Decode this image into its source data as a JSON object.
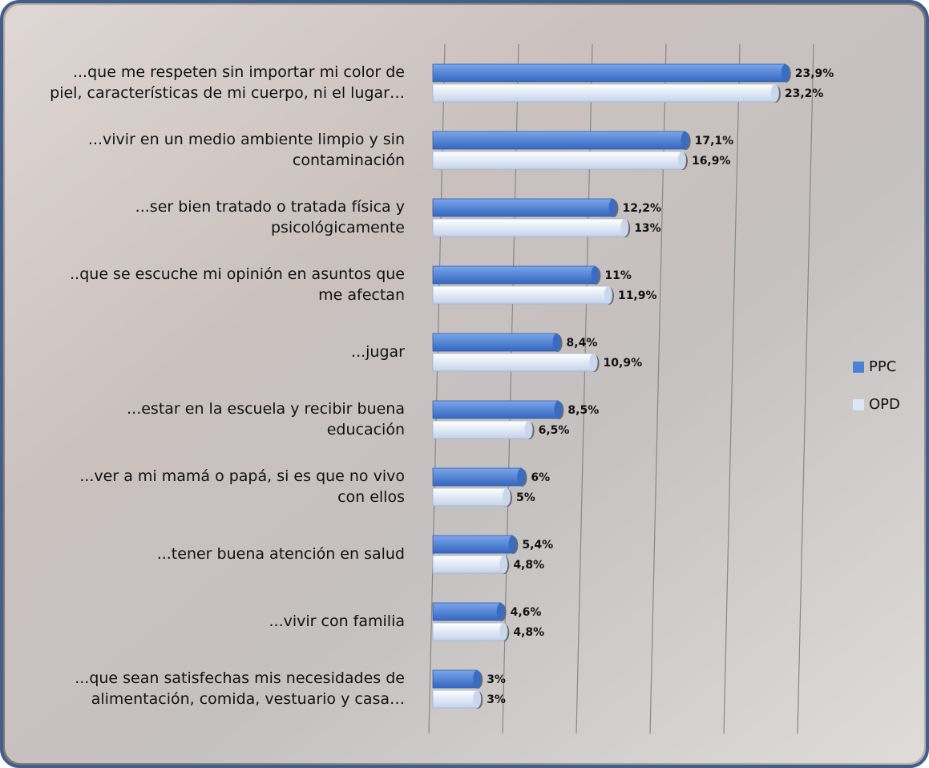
{
  "chart_data": {
    "type": "bar",
    "orientation": "horizontal",
    "categories": [
      "...que me respeten sin importar mi color de\npiel, características de mi cuerpo, ni el lugar…",
      "...vivir en un medio ambiente limpio y sin\ncontaminación",
      "...ser bien tratado o tratada física y\npsicológicamente",
      "..que se escuche mi opinión en asuntos que\nme afectan",
      "...jugar",
      "...estar en la escuela y recibir buena\neducación",
      "...ver a mi mamá o papá, si es que no vivo\ncon ellos",
      "...tener buena atención en salud",
      "...vivir con familia",
      "...que sean satisfechas mis necesidades de\nalimentación, comida, vestuario y casa…"
    ],
    "series": [
      {
        "name": "PPC",
        "color": "#4a82d6",
        "values": [
          23.9,
          17.1,
          12.2,
          11,
          8.4,
          8.5,
          6,
          5.4,
          4.6,
          3
        ],
        "value_labels": [
          "23,9%",
          "17,1%",
          "12,2%",
          "11%",
          "8,4%",
          "8,5%",
          "6%",
          "5,4%",
          "4,6%",
          "3%"
        ]
      },
      {
        "name": "OPD",
        "color": "#dbe6f6",
        "values": [
          23.2,
          16.9,
          13,
          11.9,
          10.9,
          6.5,
          5,
          4.8,
          4.8,
          3
        ],
        "value_labels": [
          "23,2%",
          "16,9%",
          "13%",
          "11,9%",
          "10,9%",
          "6,5%",
          "5%",
          "4,8%",
          "4,8%",
          "3%"
        ]
      }
    ],
    "xlim": [
      0,
      25
    ],
    "xticks": [
      0,
      5,
      10,
      15,
      20,
      25
    ],
    "grid": true,
    "legend": "right"
  }
}
